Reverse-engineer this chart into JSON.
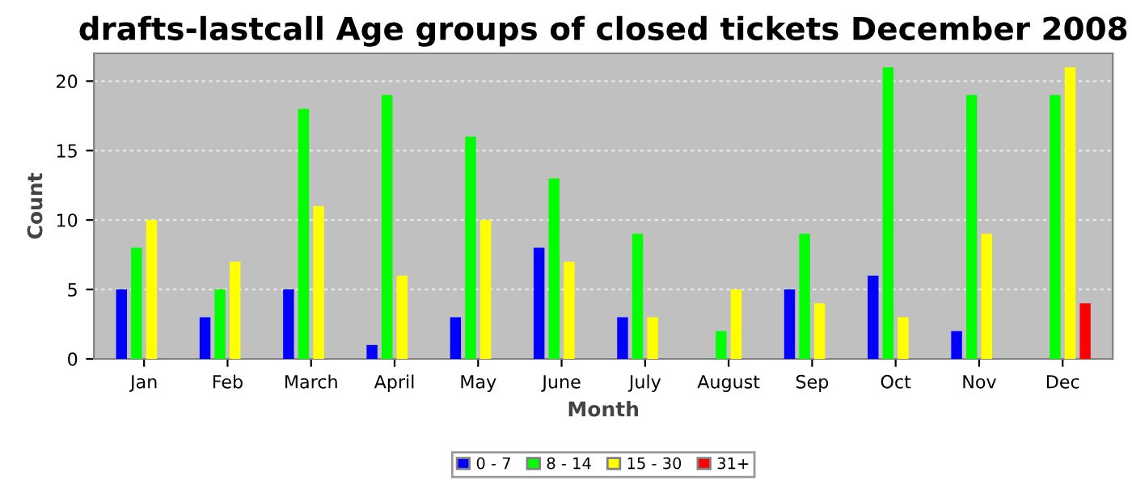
{
  "chart_data": {
    "type": "bar",
    "title": "drafts-lastcall Age groups of closed tickets December 2008",
    "xlabel": "Month",
    "ylabel": "Count",
    "categories": [
      "Jan",
      "Feb",
      "March",
      "April",
      "May",
      "June",
      "July",
      "August",
      "Sep",
      "Oct",
      "Nov",
      "Dec"
    ],
    "series": [
      {
        "name": "0 - 7",
        "color": "#0000ff",
        "values": [
          5,
          3,
          5,
          1,
          3,
          8,
          3,
          0,
          5,
          6,
          2,
          0
        ]
      },
      {
        "name": "8 - 14",
        "color": "#00ff00",
        "values": [
          8,
          5,
          18,
          19,
          16,
          13,
          9,
          2,
          9,
          21,
          19,
          19
        ]
      },
      {
        "name": "15 - 30",
        "color": "#ffff00",
        "values": [
          10,
          7,
          11,
          6,
          10,
          7,
          3,
          5,
          4,
          3,
          9,
          21
        ]
      },
      {
        "name": "31+",
        "color": "#ff0000",
        "values": [
          0,
          0,
          0,
          0,
          0,
          0,
          0,
          0,
          0,
          0,
          0,
          4
        ]
      }
    ],
    "ylim": [
      0,
      22
    ],
    "yticks": [
      0,
      5,
      10,
      15,
      20
    ],
    "grid": "y",
    "legend": "bottom"
  }
}
